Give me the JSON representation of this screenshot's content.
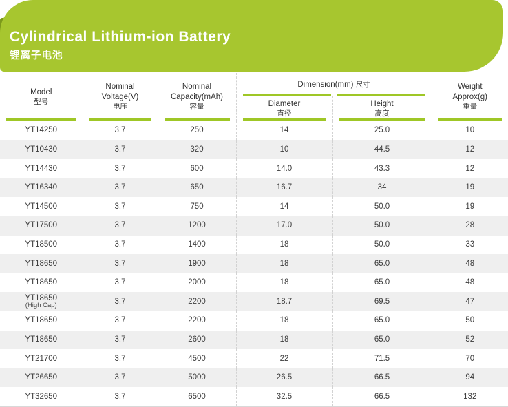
{
  "banner": {
    "title": "Cylindrical Lithium-ion Battery",
    "subtitle_zh": "锂离子电池",
    "bg_color": "#a7c62f",
    "accent_color": "#7c991b",
    "underline_color": "#9fc726",
    "stripe_color": "#efefef"
  },
  "table": {
    "header": {
      "model": {
        "line1": "Model",
        "zh": "型号"
      },
      "voltage": {
        "line1": "Nominal",
        "line2": "Voltage(V)",
        "zh": "电压"
      },
      "capacity": {
        "line1": "Nominal",
        "line2": "Capacity(mAh)",
        "zh": "容量"
      },
      "dimension": {
        "label": "Dimension(mm)",
        "zh": "尺寸"
      },
      "diameter": {
        "line1": "Diameter",
        "zh": "直径"
      },
      "height": {
        "line1": "Height",
        "zh": "高度"
      },
      "weight": {
        "line1": "Weight",
        "line2": "Approx(g)",
        "zh": "重量"
      }
    },
    "rows": [
      {
        "model": "YT14250",
        "voltage": "3.7",
        "capacity": "250",
        "diameter": "14",
        "height": "25.0",
        "weight": "10"
      },
      {
        "model": "YT10430",
        "voltage": "3.7",
        "capacity": "320",
        "diameter": "10",
        "height": "44.5",
        "weight": "12"
      },
      {
        "model": "YT14430",
        "voltage": "3.7",
        "capacity": "600",
        "diameter": "14.0",
        "height": "43.3",
        "weight": "12"
      },
      {
        "model": "YT16340",
        "voltage": "3.7",
        "capacity": "650",
        "diameter": "16.7",
        "height": "34",
        "weight": "19"
      },
      {
        "model": "YT14500",
        "voltage": "3.7",
        "capacity": "750",
        "diameter": "14",
        "height": "50.0",
        "weight": "19"
      },
      {
        "model": "YT17500",
        "voltage": "3.7",
        "capacity": "1200",
        "diameter": "17.0",
        "height": "50.0",
        "weight": "28"
      },
      {
        "model": "YT18500",
        "voltage": "3.7",
        "capacity": "1400",
        "diameter": "18",
        "height": "50.0",
        "weight": "33"
      },
      {
        "model": "YT18650",
        "voltage": "3.7",
        "capacity": "1900",
        "diameter": "18",
        "height": "65.0",
        "weight": "48"
      },
      {
        "model": "YT18650",
        "voltage": "3.7",
        "capacity": "2000",
        "diameter": "18",
        "height": "65.0",
        "weight": "48"
      },
      {
        "model": "YT18650",
        "note": "(High Cap)",
        "voltage": "3.7",
        "capacity": "2200",
        "diameter": "18.7",
        "height": "69.5",
        "weight": "47"
      },
      {
        "model": "YT18650",
        "voltage": "3.7",
        "capacity": "2200",
        "diameter": "18",
        "height": "65.0",
        "weight": "50"
      },
      {
        "model": "YT18650",
        "voltage": "3.7",
        "capacity": "2600",
        "diameter": "18",
        "height": "65.0",
        "weight": "52"
      },
      {
        "model": "YT21700",
        "voltage": "3.7",
        "capacity": "4500",
        "diameter": "22",
        "height": "71.5",
        "weight": "70"
      },
      {
        "model": "YT26650",
        "voltage": "3.7",
        "capacity": "5000",
        "diameter": "26.5",
        "height": "66.5",
        "weight": "94"
      },
      {
        "model": "YT32650",
        "voltage": "3.7",
        "capacity": "6500",
        "diameter": "32.5",
        "height": "66.5",
        "weight": "132"
      }
    ]
  }
}
